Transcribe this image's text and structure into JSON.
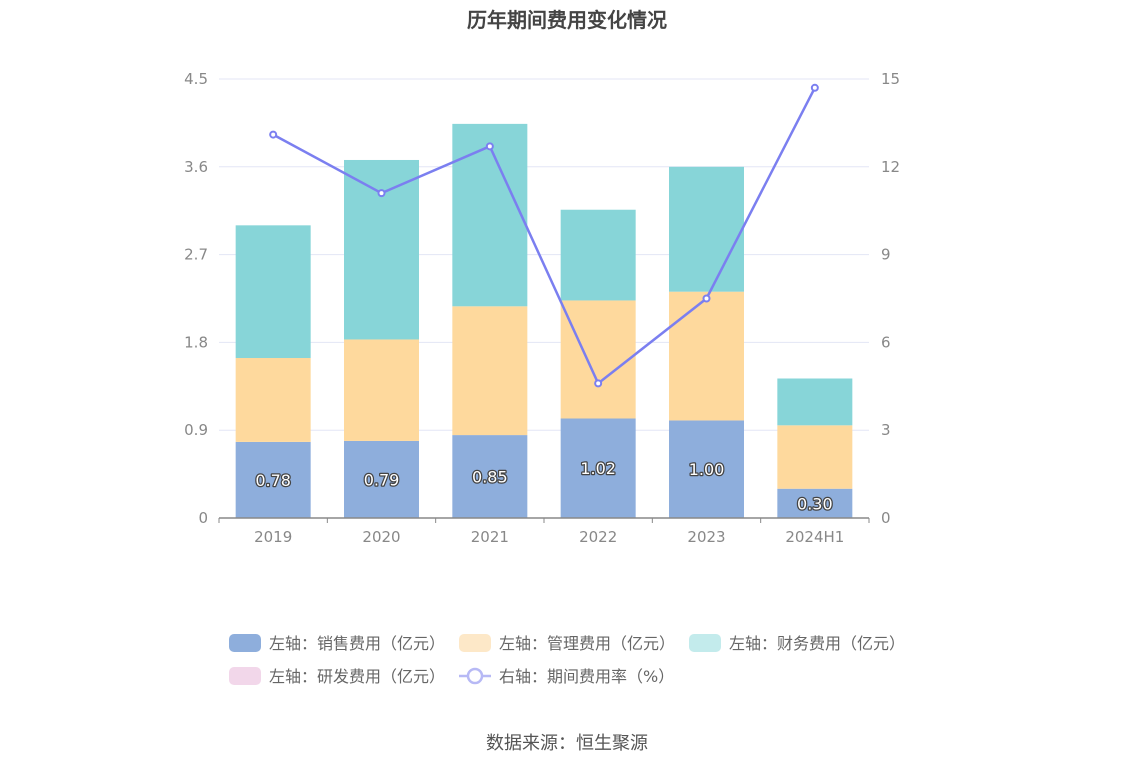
{
  "title": "历年期间费用变化情况",
  "source": "数据来源：恒生聚源",
  "colors": {
    "sales": "#8eaedc",
    "admin": "#fed99d",
    "finance": "#87d5d8",
    "rnd": "#f2d7ea",
    "rate": "#7b7ff0",
    "grid": "#e3e6f5",
    "axis": "#888888"
  },
  "chart_data": {
    "type": "bar",
    "stacked": true,
    "categories": [
      "2019",
      "2020",
      "2021",
      "2022",
      "2023",
      "2024H1"
    ],
    "left_axis": {
      "min": 0,
      "max": 4.5,
      "ticks": [
        "0",
        "0.9",
        "1.8",
        "2.7",
        "3.6",
        "4.5"
      ]
    },
    "right_axis": {
      "min": 0,
      "max": 15,
      "ticks": [
        "0",
        "3",
        "6",
        "9",
        "12",
        "15"
      ]
    },
    "series": [
      {
        "name": "左轴：销售费用（亿元）",
        "key": "sales",
        "axis": "left",
        "type": "bar",
        "values": [
          0.78,
          0.79,
          0.85,
          1.02,
          1.0,
          0.3
        ],
        "labels": [
          "0.78",
          "0.79",
          "0.85",
          "1.02",
          "1.00",
          "0.30"
        ]
      },
      {
        "name": "左轴：管理费用（亿元）",
        "key": "admin",
        "axis": "left",
        "type": "bar",
        "values": [
          0.86,
          1.04,
          1.32,
          1.21,
          1.32,
          0.65
        ]
      },
      {
        "name": "左轴：财务费用（亿元）",
        "key": "finance",
        "axis": "left",
        "type": "bar",
        "values": [
          1.36,
          1.84,
          1.87,
          0.93,
          1.28,
          0.48
        ]
      },
      {
        "name": "左轴：研发费用（亿元）",
        "key": "rnd",
        "axis": "left",
        "type": "bar",
        "values": [
          0,
          0,
          0,
          0,
          0,
          0
        ]
      },
      {
        "name": "右轴：期间费用率（%）",
        "key": "rate",
        "axis": "right",
        "type": "line",
        "values": [
          13.1,
          11.1,
          12.7,
          4.6,
          7.5,
          14.7
        ]
      }
    ],
    "grid": true,
    "legend_position": "bottom"
  }
}
